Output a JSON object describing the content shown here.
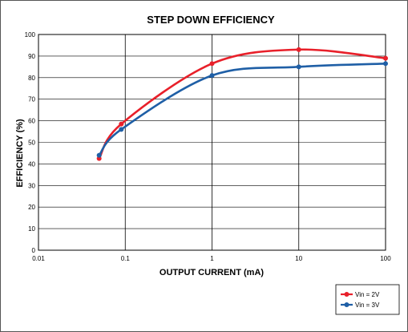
{
  "chart_data": {
    "type": "line",
    "title": "STEP DOWN EFFICIENCY",
    "xlabel": "OUTPUT CURRENT (mA)",
    "ylabel": "EFFICIENCY (%)",
    "x_scale": "log",
    "xlim": [
      0.01,
      100
    ],
    "ylim": [
      0,
      100
    ],
    "x_ticks": [
      "0.01",
      "0.1",
      "1",
      "10",
      "100"
    ],
    "y_ticks": [
      "0",
      "10",
      "20",
      "30",
      "40",
      "50",
      "60",
      "70",
      "80",
      "90",
      "100"
    ],
    "grid": true,
    "legend_position": "bottom-right",
    "series": [
      {
        "name": "Vin = 2V",
        "color": "#e8202a",
        "x": [
          0.05,
          0.09,
          1,
          10,
          100
        ],
        "y": [
          42.5,
          58.5,
          86.5,
          93,
          89
        ]
      },
      {
        "name": "Vin = 3V",
        "color": "#1f5fa6",
        "x": [
          0.05,
          0.09,
          1,
          10,
          100
        ],
        "y": [
          44,
          56,
          81,
          85,
          86.5
        ]
      }
    ]
  }
}
